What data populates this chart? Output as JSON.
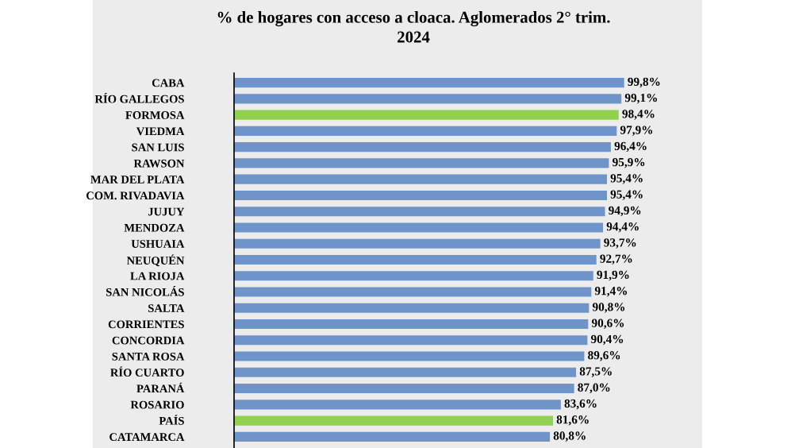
{
  "chart_data": {
    "type": "bar",
    "orientation": "horizontal",
    "title": "% de hogares con acceso a cloaca. Aglomerados 2° trim.\n2024",
    "categories": [
      "CABA",
      "RÍO GALLEGOS",
      "FORMOSA",
      "VIEDMA",
      "SAN LUIS",
      "RAWSON",
      "MAR DEL PLATA",
      "COM. RIVADAVIA",
      "JUJUY",
      "MENDOZA",
      "USHUAIA",
      "NEUQUÉN",
      "LA RIOJA",
      "SAN NICOLÁS",
      "SALTA",
      "CORRIENTES",
      "CONCORDIA",
      "SANTA ROSA",
      "RÍO CUARTO",
      "PARANÁ",
      "ROSARIO",
      "PAÍS",
      "CATAMARCA"
    ],
    "values": [
      99.8,
      99.1,
      98.4,
      97.9,
      96.4,
      95.9,
      95.4,
      95.4,
      94.9,
      94.4,
      93.7,
      92.7,
      91.9,
      91.4,
      90.8,
      90.6,
      90.4,
      89.6,
      87.5,
      87.0,
      83.6,
      81.6,
      80.8
    ],
    "value_labels": [
      "99,8%",
      "99,1%",
      "98,4%",
      "97,9%",
      "96,4%",
      "95,9%",
      "95,4%",
      "95,4%",
      "94,9%",
      "94,4%",
      "93,7%",
      "92,7%",
      "91,9%",
      "91,4%",
      "90,8%",
      "90,6%",
      "90,4%",
      "89,6%",
      "87,5%",
      "87,0%",
      "83,6%",
      "81,6%",
      "80,8%"
    ],
    "colors": [
      "#6f94c9",
      "#6f94c9",
      "#92d050",
      "#6f94c9",
      "#6f94c9",
      "#6f94c9",
      "#6f94c9",
      "#6f94c9",
      "#6f94c9",
      "#6f94c9",
      "#6f94c9",
      "#6f94c9",
      "#6f94c9",
      "#6f94c9",
      "#6f94c9",
      "#6f94c9",
      "#6f94c9",
      "#6f94c9",
      "#6f94c9",
      "#6f94c9",
      "#6f94c9",
      "#92d050",
      "#6f94c9"
    ],
    "grid": false,
    "legend": false
  }
}
